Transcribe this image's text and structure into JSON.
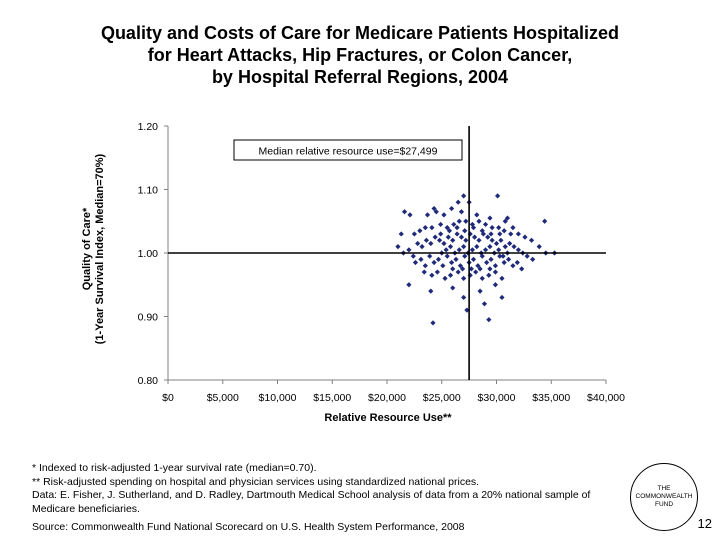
{
  "title": {
    "line1": "Quality and Costs of Care for Medicare Patients Hospitalized",
    "line2": "for Heart Attacks, Hip Fractures, or Colon Cancer,",
    "line3": "by Hospital Referral Regions, 2004"
  },
  "chart_data": {
    "type": "scatter",
    "ylabel_line1": "Quality of Care*",
    "ylabel_line2": "(1-Year Survival Index, Median=70%)",
    "xlabel": "Relative Resource Use**",
    "xlim": [
      0,
      40000
    ],
    "ylim": [
      0.8,
      1.2
    ],
    "x_ticks": [
      "$0",
      "$5,000",
      "$10,000",
      "$15,000",
      "$20,000",
      "$25,000",
      "$30,000",
      "$35,000",
      "$40,000"
    ],
    "y_ticks": [
      "0.80",
      "0.90",
      "1.00",
      "1.10",
      "1.20"
    ],
    "median_x": 27499,
    "median_y": 1.0,
    "annotation": "Median relative resource use=$27,499",
    "grid": false,
    "marker_color": "#1f2a7a",
    "points": [
      [
        21600,
        1.065
      ],
      [
        22100,
        1.06
      ],
      [
        24300,
        1.07
      ],
      [
        25900,
        1.07
      ],
      [
        26500,
        1.08
      ],
      [
        27500,
        1.08
      ],
      [
        30100,
        1.09
      ],
      [
        27000,
        1.09
      ],
      [
        34400,
        1.05
      ],
      [
        23700,
        1.06
      ],
      [
        24500,
        1.065
      ],
      [
        25200,
        1.06
      ],
      [
        26800,
        1.065
      ],
      [
        28200,
        1.06
      ],
      [
        29400,
        1.055
      ],
      [
        31000,
        1.055
      ],
      [
        21300,
        1.03
      ],
      [
        22500,
        1.03
      ],
      [
        23000,
        1.035
      ],
      [
        23500,
        1.04
      ],
      [
        24100,
        1.04
      ],
      [
        24900,
        1.045
      ],
      [
        25500,
        1.04
      ],
      [
        26100,
        1.045
      ],
      [
        26600,
        1.05
      ],
      [
        27200,
        1.05
      ],
      [
        27800,
        1.045
      ],
      [
        28400,
        1.05
      ],
      [
        29000,
        1.045
      ],
      [
        29600,
        1.04
      ],
      [
        30200,
        1.04
      ],
      [
        30700,
        1.035
      ],
      [
        31300,
        1.03
      ],
      [
        32000,
        1.03
      ],
      [
        32600,
        1.025
      ],
      [
        33200,
        1.02
      ],
      [
        33900,
        1.01
      ],
      [
        34500,
        1.0
      ],
      [
        35300,
        1.0
      ],
      [
        21000,
        1.01
      ],
      [
        21500,
        1.0
      ],
      [
        22000,
        1.005
      ],
      [
        22400,
        0.995
      ],
      [
        22800,
        1.015
      ],
      [
        23200,
        1.01
      ],
      [
        23600,
        1.02
      ],
      [
        24000,
        1.015
      ],
      [
        24400,
        1.025
      ],
      [
        24800,
        1.02
      ],
      [
        25200,
        1.015
      ],
      [
        25600,
        1.025
      ],
      [
        26000,
        1.02
      ],
      [
        26400,
        1.03
      ],
      [
        26800,
        1.025
      ],
      [
        27200,
        1.02
      ],
      [
        27600,
        1.03
      ],
      [
        28000,
        1.025
      ],
      [
        28400,
        1.02
      ],
      [
        28800,
        1.03
      ],
      [
        29200,
        1.025
      ],
      [
        29600,
        1.02
      ],
      [
        30000,
        1.015
      ],
      [
        30400,
        1.02
      ],
      [
        30800,
        1.01
      ],
      [
        31200,
        1.015
      ],
      [
        31600,
        1.01
      ],
      [
        32000,
        1.005
      ],
      [
        32400,
        1.0
      ],
      [
        32800,
        0.995
      ],
      [
        33300,
        0.99
      ],
      [
        22600,
        0.985
      ],
      [
        23100,
        0.99
      ],
      [
        23500,
        0.98
      ],
      [
        23900,
        0.995
      ],
      [
        24300,
        0.985
      ],
      [
        24700,
        0.99
      ],
      [
        25100,
        0.98
      ],
      [
        25500,
        0.995
      ],
      [
        25900,
        0.985
      ],
      [
        26300,
        0.99
      ],
      [
        26700,
        0.98
      ],
      [
        27100,
        0.995
      ],
      [
        27500,
        0.985
      ],
      [
        27900,
        0.99
      ],
      [
        28300,
        0.98
      ],
      [
        28700,
        0.995
      ],
      [
        29100,
        0.985
      ],
      [
        29500,
        0.99
      ],
      [
        29900,
        0.98
      ],
      [
        30300,
        0.995
      ],
      [
        30700,
        0.985
      ],
      [
        31100,
        0.99
      ],
      [
        31500,
        0.98
      ],
      [
        31900,
        0.985
      ],
      [
        32300,
        0.975
      ],
      [
        23400,
        0.97
      ],
      [
        24100,
        0.965
      ],
      [
        24600,
        0.97
      ],
      [
        25300,
        0.96
      ],
      [
        25800,
        0.965
      ],
      [
        26500,
        0.97
      ],
      [
        27000,
        0.96
      ],
      [
        27600,
        0.965
      ],
      [
        28100,
        0.97
      ],
      [
        28700,
        0.96
      ],
      [
        29300,
        0.965
      ],
      [
        29900,
        0.97
      ],
      [
        30500,
        0.96
      ],
      [
        22000,
        0.95
      ],
      [
        24000,
        0.94
      ],
      [
        26000,
        0.945
      ],
      [
        27000,
        0.93
      ],
      [
        28500,
        0.94
      ],
      [
        29900,
        0.95
      ],
      [
        30500,
        0.93
      ],
      [
        28900,
        0.92
      ],
      [
        24200,
        0.89
      ],
      [
        27300,
        0.91
      ],
      [
        29300,
        0.895
      ],
      [
        25000,
        1.0
      ],
      [
        25400,
        1.005
      ],
      [
        25800,
        1.01
      ],
      [
        26200,
        1.0
      ],
      [
        26600,
        1.005
      ],
      [
        27000,
        1.01
      ],
      [
        27400,
        1.0
      ],
      [
        27800,
        1.005
      ],
      [
        28200,
        1.01
      ],
      [
        28600,
        1.0
      ],
      [
        29000,
        1.005
      ],
      [
        29400,
        1.01
      ],
      [
        29800,
        1.0
      ],
      [
        30200,
        1.005
      ],
      [
        30600,
        0.995
      ],
      [
        31000,
        1.0
      ],
      [
        26000,
        0.975
      ],
      [
        26900,
        0.975
      ],
      [
        27700,
        0.975
      ],
      [
        28500,
        0.975
      ],
      [
        29400,
        0.975
      ],
      [
        24900,
        1.03
      ],
      [
        25700,
        1.035
      ],
      [
        26400,
        1.04
      ],
      [
        27100,
        1.035
      ],
      [
        27900,
        1.04
      ],
      [
        28700,
        1.035
      ],
      [
        29500,
        1.03
      ],
      [
        30300,
        1.03
      ],
      [
        30800,
        1.05
      ],
      [
        31500,
        1.04
      ]
    ]
  },
  "footnotes": {
    "line1": "* Indexed to risk-adjusted 1-year survival rate (median=0.70).",
    "line2": "** Risk-adjusted spending on hospital and physician services using standardized national prices.",
    "line3": "Data: E. Fisher, J. Sutherland, and D. Radley, Dartmouth Medical School analysis of data from a 20% national sample of Medicare beneficiaries.",
    "source": "Source: Commonwealth Fund National Scorecard on U.S. Health System Performance, 2008"
  },
  "logo": {
    "line1": "THE",
    "line2": "COMMONWEALTH",
    "line3": "FUND"
  },
  "page_number": "12"
}
